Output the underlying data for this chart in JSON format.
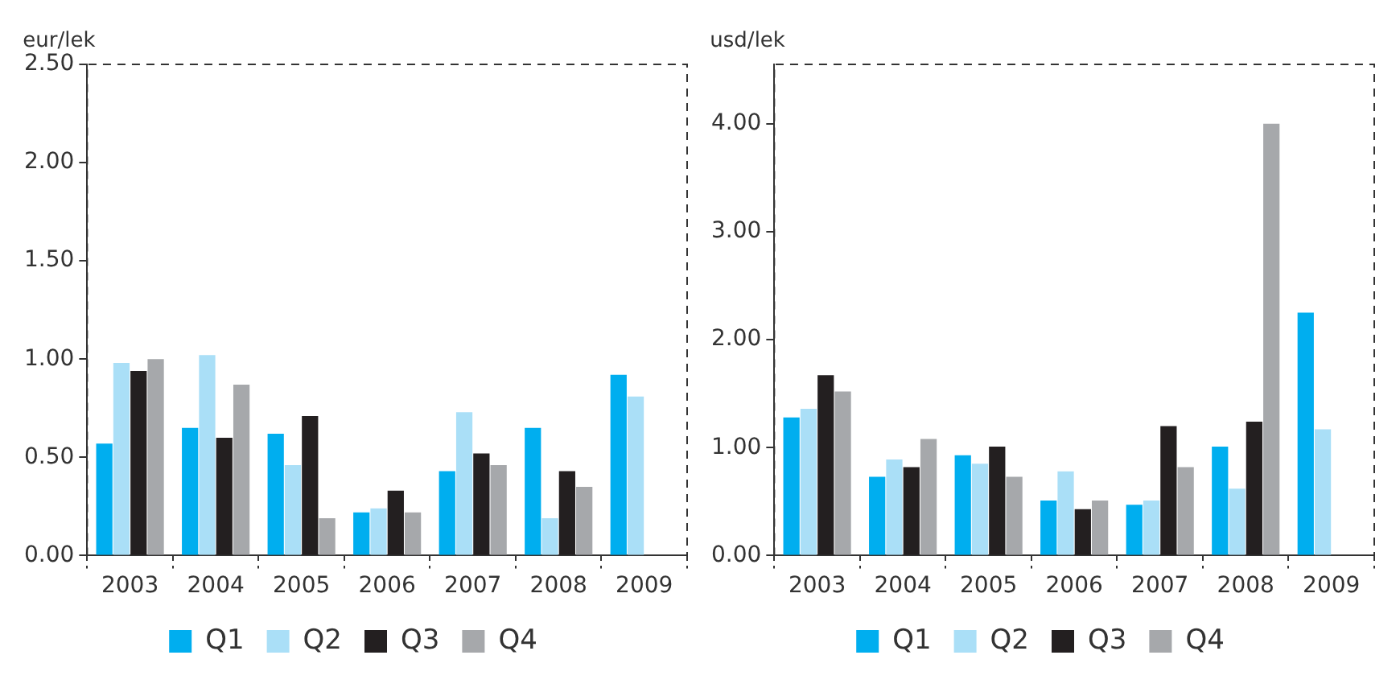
{
  "chart_data": [
    {
      "type": "bar",
      "ylabel": "eur/lek",
      "categories": [
        "2003",
        "2004",
        "2005",
        "2006",
        "2007",
        "2008",
        "2009"
      ],
      "series": [
        {
          "name": "Q1",
          "color": "#00aeef",
          "values": [
            0.57,
            0.65,
            0.62,
            0.22,
            0.43,
            0.65,
            0.92
          ]
        },
        {
          "name": "Q2",
          "color": "#aadff7",
          "values": [
            0.98,
            1.02,
            0.46,
            0.24,
            0.73,
            0.19,
            0.81
          ]
        },
        {
          "name": "Q3",
          "color": "#231f20",
          "values": [
            0.94,
            0.6,
            0.71,
            0.33,
            0.52,
            0.43,
            null
          ]
        },
        {
          "name": "Q4",
          "color": "#a6a8ab",
          "values": [
            1.0,
            0.87,
            0.19,
            0.22,
            0.46,
            0.35,
            null
          ]
        }
      ],
      "ylim": [
        0,
        2.5
      ],
      "yticks": [
        {
          "value": 0,
          "label": "0.00"
        },
        {
          "value": 0.5,
          "label": "0.50"
        },
        {
          "value": 1,
          "label": "1.00"
        },
        {
          "value": 1.5,
          "label": "1.50"
        },
        {
          "value": 2,
          "label": "2.00"
        },
        {
          "value": 2.5,
          "label": "2.50"
        }
      ],
      "grid": false,
      "legend": "bottom"
    },
    {
      "type": "bar",
      "ylabel": "usd/lek",
      "categories": [
        "2003",
        "2004",
        "2005",
        "2006",
        "2007",
        "2008",
        "2009"
      ],
      "series": [
        {
          "name": "Q1",
          "color": "#00aeef",
          "values": [
            1.28,
            0.73,
            0.93,
            0.51,
            0.47,
            1.01,
            2.25
          ]
        },
        {
          "name": "Q2",
          "color": "#aadff7",
          "values": [
            1.36,
            0.89,
            0.85,
            0.78,
            0.51,
            0.62,
            1.17
          ]
        },
        {
          "name": "Q3",
          "color": "#231f20",
          "values": [
            1.67,
            0.82,
            1.01,
            0.43,
            1.2,
            1.24,
            null
          ]
        },
        {
          "name": "Q4",
          "color": "#a6a8ab",
          "values": [
            1.52,
            1.08,
            0.73,
            0.51,
            0.82,
            4.0,
            null
          ]
        }
      ],
      "ylim": [
        0,
        4.55
      ],
      "yticks": [
        {
          "value": 0,
          "label": "0.00"
        },
        {
          "value": 1,
          "label": "1.00"
        },
        {
          "value": 2,
          "label": "2.00"
        },
        {
          "value": 3,
          "label": "3.00"
        },
        {
          "value": 4,
          "label": "4.00"
        }
      ],
      "grid": false,
      "legend": "bottom"
    }
  ]
}
